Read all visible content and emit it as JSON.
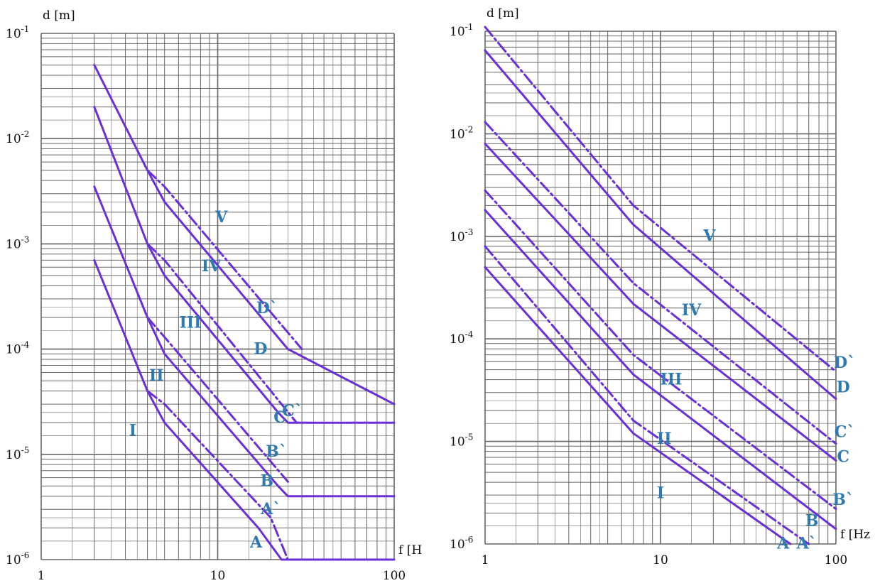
{
  "colors": {
    "curve": "#6a2fd6",
    "label": "#2f7bb1",
    "grid": "#666666",
    "text": "#111111"
  },
  "chart_data": [
    {
      "type": "line",
      "xscale": "log",
      "yscale": "log",
      "xlim": [
        1,
        100
      ],
      "ylim": [
        1e-06,
        0.1
      ],
      "xlabel": "f [H",
      "ylabel": "d [m]",
      "xticks": [
        "1",
        "10",
        "100"
      ],
      "yticks": [
        {
          "base": "10",
          "exp": "-6"
        },
        {
          "base": "10",
          "exp": "-5"
        },
        {
          "base": "10",
          "exp": "-4"
        },
        {
          "base": "10",
          "exp": "-3"
        },
        {
          "base": "10",
          "exp": "-2"
        },
        {
          "base": "10",
          "exp": "-1"
        }
      ],
      "grid": true,
      "series": [
        {
          "name": "A",
          "style": "solid",
          "points": [
            [
              2,
              0.0007
            ],
            [
              4,
              4e-05
            ],
            [
              5,
              2e-05
            ],
            [
              17,
              2e-06
            ],
            [
              23,
              1e-06
            ],
            [
              100,
              1e-06
            ]
          ]
        },
        {
          "name": "A`",
          "style": "dashdot",
          "points": [
            [
              4,
              4e-05
            ],
            [
              5,
              3e-05
            ],
            [
              20,
              2.5e-06
            ],
            [
              25,
              1e-06
            ]
          ]
        },
        {
          "name": "B",
          "style": "solid",
          "points": [
            [
              2,
              0.0035
            ],
            [
              4,
              0.0002
            ],
            [
              5,
              9e-05
            ],
            [
              22,
              5e-06
            ],
            [
              25,
              4e-06
            ],
            [
              100,
              4e-06
            ]
          ]
        },
        {
          "name": "B`",
          "style": "dashdot",
          "points": [
            [
              4,
              0.0002
            ],
            [
              5,
              0.00013
            ],
            [
              25,
              5.5e-06
            ]
          ]
        },
        {
          "name": "C",
          "style": "solid",
          "points": [
            [
              2,
              0.02
            ],
            [
              4,
              0.001
            ],
            [
              5,
              0.0005
            ],
            [
              22,
              2.5e-05
            ],
            [
              25,
              2e-05
            ],
            [
              100,
              2e-05
            ]
          ]
        },
        {
          "name": "C`",
          "style": "dashdot",
          "points": [
            [
              4,
              0.001
            ],
            [
              5,
              0.0007
            ],
            [
              28,
              2e-05
            ]
          ]
        },
        {
          "name": "D",
          "style": "solid",
          "points": [
            [
              2,
              0.05
            ],
            [
              4,
              0.005
            ],
            [
              5,
              0.0025
            ],
            [
              25,
              0.0001
            ],
            [
              100,
              3e-05
            ]
          ]
        },
        {
          "name": "D`",
          "style": "dashdot",
          "points": [
            [
              4,
              0.005
            ],
            [
              5,
              0.0035
            ],
            [
              30,
              0.0001
            ]
          ]
        }
      ],
      "labels": [
        {
          "text": "I",
          "x": 3.3,
          "y": 1.5e-05
        },
        {
          "text": "II",
          "x": 4.5,
          "y": 5e-05
        },
        {
          "text": "III",
          "x": 7,
          "y": 0.00016
        },
        {
          "text": "IV",
          "x": 9.2,
          "y": 0.00055
        },
        {
          "text": "V",
          "x": 10.5,
          "y": 0.0016
        },
        {
          "text": "A",
          "x": 16.5,
          "y": 1.3e-06
        },
        {
          "text": "A`",
          "x": 20,
          "y": 2.7e-06
        },
        {
          "text": "B",
          "x": 19,
          "y": 5e-06
        },
        {
          "text": "B`",
          "x": 21.5,
          "y": 9.5e-06
        },
        {
          "text": "C",
          "x": 22.5,
          "y": 2e-05
        },
        {
          "text": "C`",
          "x": 26.5,
          "y": 2.3e-05
        },
        {
          "text": "D",
          "x": 17.5,
          "y": 9e-05
        },
        {
          "text": "D`",
          "x": 19,
          "y": 0.00022
        }
      ]
    },
    {
      "type": "line",
      "xscale": "log",
      "yscale": "log",
      "xlim": [
        1,
        100
      ],
      "ylim": [
        1e-06,
        0.1
      ],
      "xlabel": "f [Hz",
      "ylabel": "d [m]",
      "xticks": [
        "1",
        "10",
        "100"
      ],
      "yticks": [
        {
          "base": "10",
          "exp": "-6"
        },
        {
          "base": "10",
          "exp": "-5"
        },
        {
          "base": "10",
          "exp": "-4"
        },
        {
          "base": "10",
          "exp": "-3"
        },
        {
          "base": "10",
          "exp": "-2"
        },
        {
          "base": "10",
          "exp": "-1"
        }
      ],
      "grid": true,
      "series": [
        {
          "name": "A",
          "style": "solid",
          "points": [
            [
              1,
              0.0005
            ],
            [
              7,
              1.2e-05
            ],
            [
              55,
              1e-06
            ]
          ]
        },
        {
          "name": "A`",
          "style": "dashdot",
          "points": [
            [
              1,
              0.0008
            ],
            [
              7,
              1.6e-05
            ],
            [
              70,
              1e-06
            ]
          ]
        },
        {
          "name": "B",
          "style": "solid",
          "points": [
            [
              1,
              0.0018
            ],
            [
              7,
              4.5e-05
            ],
            [
              100,
              1.4e-06
            ]
          ]
        },
        {
          "name": "B`",
          "style": "dashdot",
          "points": [
            [
              1,
              0.0028
            ],
            [
              7,
              7e-05
            ],
            [
              100,
              2.2e-06
            ]
          ]
        },
        {
          "name": "C",
          "style": "solid",
          "points": [
            [
              1,
              0.008
            ],
            [
              7,
              0.00022
            ],
            [
              100,
              6.5e-06
            ]
          ]
        },
        {
          "name": "C`",
          "style": "dashdot",
          "points": [
            [
              1,
              0.013
            ],
            [
              7,
              0.00035
            ],
            [
              100,
              9.5e-06
            ]
          ]
        },
        {
          "name": "D",
          "style": "solid",
          "points": [
            [
              1,
              0.065
            ],
            [
              7,
              0.0013
            ],
            [
              100,
              2.6e-05
            ]
          ]
        },
        {
          "name": "D`",
          "style": "dashdot",
          "points": [
            [
              1,
              0.11
            ],
            [
              7,
              0.002
            ],
            [
              100,
              4.8e-05
            ]
          ]
        }
      ],
      "labels": [
        {
          "text": "I",
          "x": 10,
          "y": 2.8e-06
        },
        {
          "text": "II",
          "x": 10.5,
          "y": 9.5e-06
        },
        {
          "text": "III",
          "x": 11.5,
          "y": 3.6e-05
        },
        {
          "text": "IV",
          "x": 15,
          "y": 0.00017
        },
        {
          "text": "V",
          "x": 19,
          "y": 0.0009
        },
        {
          "text": "A",
          "x": 50,
          "y": 9e-07
        },
        {
          "text": "A`",
          "x": 68,
          "y": 9e-07
        },
        {
          "text": "B",
          "x": 73,
          "y": 1.5e-06
        },
        {
          "text": "B`",
          "x": 110,
          "y": 2.4e-06
        },
        {
          "text": "C",
          "x": 110,
          "y": 6.3e-06
        },
        {
          "text": "C`",
          "x": 112,
          "y": 1.1e-05
        },
        {
          "text": "D",
          "x": 110,
          "y": 3e-05
        },
        {
          "text": "D`",
          "x": 112,
          "y": 5.2e-05
        }
      ]
    }
  ]
}
